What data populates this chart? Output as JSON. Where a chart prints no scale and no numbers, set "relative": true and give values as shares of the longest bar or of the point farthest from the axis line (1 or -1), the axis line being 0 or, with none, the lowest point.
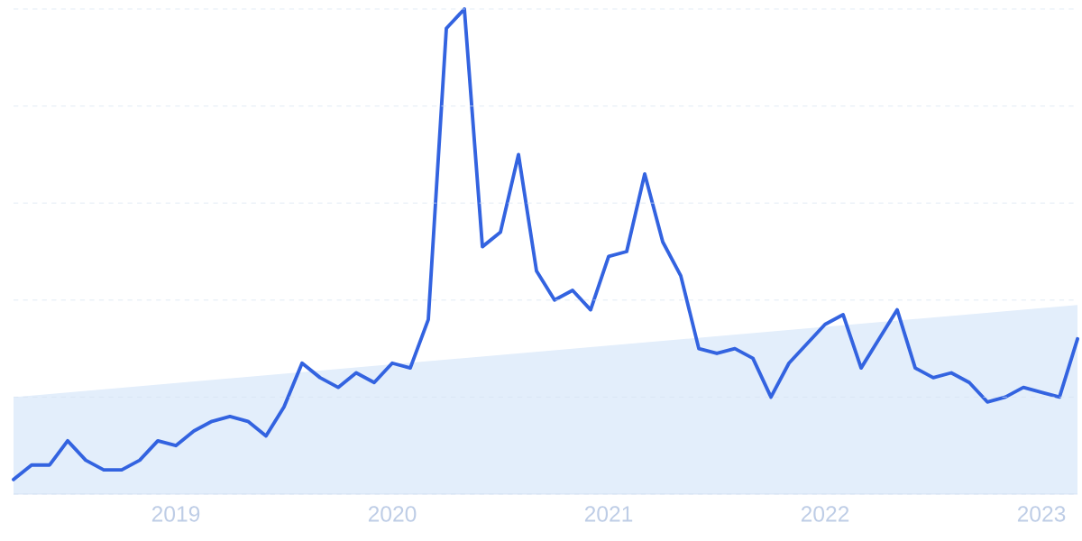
{
  "chart_data": {
    "type": "line",
    "relative": true,
    "grid": "y",
    "tick_labels": "x",
    "line_style": "solid",
    "x": [
      "2018-04",
      "2018-05",
      "2018-06",
      "2018-07",
      "2018-08",
      "2018-09",
      "2018-10",
      "2018-11",
      "2018-12",
      "2019-01",
      "2019-02",
      "2019-03",
      "2019-04",
      "2019-05",
      "2019-06",
      "2019-07",
      "2019-08",
      "2019-09",
      "2019-10",
      "2019-11",
      "2019-12",
      "2020-01",
      "2020-02",
      "2020-03",
      "2020-04",
      "2020-05",
      "2020-06",
      "2020-07",
      "2020-08",
      "2020-09",
      "2020-10",
      "2020-11",
      "2020-12",
      "2021-01",
      "2021-02",
      "2021-03",
      "2021-04",
      "2021-05",
      "2021-06",
      "2021-07",
      "2021-08",
      "2021-09",
      "2021-10",
      "2021-11",
      "2021-12",
      "2022-01",
      "2022-02",
      "2022-03",
      "2022-04",
      "2022-05",
      "2022-06",
      "2022-07",
      "2022-08",
      "2022-09",
      "2022-10",
      "2022-11",
      "2022-12",
      "2023-01",
      "2023-02",
      "2023-03"
    ],
    "xlim": [
      "2018-04",
      "2023-03"
    ],
    "xticks": [
      "2019",
      "2020",
      "2021",
      "2022",
      "2023"
    ],
    "series": [
      {
        "type": "area",
        "color": "#e3eefb",
        "x": [
          "2018-04",
          "2023-03"
        ],
        "values": [
          0.2,
          0.39
        ]
      },
      {
        "color": "#3363e0",
        "values": [
          0.03,
          0.06,
          0.06,
          0.11,
          0.07,
          0.05,
          0.05,
          0.07,
          0.11,
          0.1,
          0.13,
          0.15,
          0.16,
          0.15,
          0.12,
          0.18,
          0.27,
          0.24,
          0.22,
          0.25,
          0.23,
          0.27,
          0.26,
          0.36,
          0.96,
          1,
          0.51,
          0.54,
          0.7,
          0.46,
          0.4,
          0.42,
          0.38,
          0.49,
          0.5,
          0.66,
          0.52,
          0.45,
          0.3,
          0.29,
          0.3,
          0.28,
          0.2,
          0.27,
          0.31,
          0.35,
          0.37,
          0.26,
          0.32,
          0.38,
          0.26,
          0.24,
          0.25,
          0.23,
          0.19,
          0.2,
          0.22,
          0.21,
          0.2,
          0.32
        ]
      }
    ]
  }
}
